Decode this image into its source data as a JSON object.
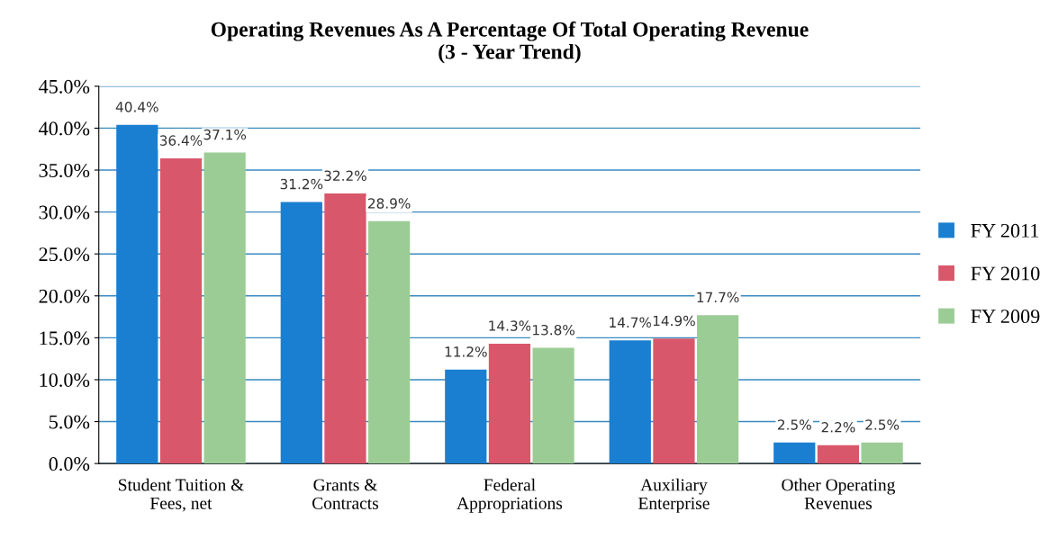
{
  "chart_data": {
    "type": "bar",
    "title": "Operating Revenues As A Percentage Of Total Operating Revenue\n(3 - Year Trend)",
    "categories": [
      "Student Tuition &\nFees, net",
      "Grants &\nContracts",
      "Federal\nAppropriations",
      "Auxiliary\nEnterprise",
      "Other Operating\nRevenues"
    ],
    "series": [
      {
        "name": "FY 2011",
        "color": "#1a7fd0",
        "values": [
          40.4,
          31.2,
          11.2,
          14.7,
          2.5
        ],
        "value_labels": [
          "40.4%",
          "31.2%",
          "11.2%",
          "14.7%",
          "2.5%"
        ]
      },
      {
        "name": "FY 2010",
        "color": "#d9576a",
        "values": [
          36.4,
          32.2,
          14.3,
          14.9,
          2.2
        ],
        "value_labels": [
          "36.4%",
          "32.2%",
          "14.3%",
          "14.9%",
          "2.2%"
        ]
      },
      {
        "name": "FY 2009",
        "color": "#9ccc96",
        "values": [
          37.1,
          28.9,
          13.8,
          17.7,
          2.5
        ],
        "value_labels": [
          "37.1%",
          "28.9%",
          "13.8%",
          "17.7%",
          "2.5%"
        ]
      }
    ],
    "ylim": [
      0,
      45
    ],
    "yticks": [
      {
        "value": 0,
        "label": "0.0%"
      },
      {
        "value": 5,
        "label": "5.0%"
      },
      {
        "value": 10,
        "label": "10.0%"
      },
      {
        "value": 15,
        "label": "15.0%"
      },
      {
        "value": 20,
        "label": "20.0%"
      },
      {
        "value": 25,
        "label": "25.0%"
      },
      {
        "value": 30,
        "label": "30.0%"
      },
      {
        "value": 35,
        "label": "35.0%"
      },
      {
        "value": 40,
        "label": "40.0%"
      },
      {
        "value": 45,
        "label": "45.0%"
      }
    ],
    "grid": "y",
    "legend": "right"
  }
}
